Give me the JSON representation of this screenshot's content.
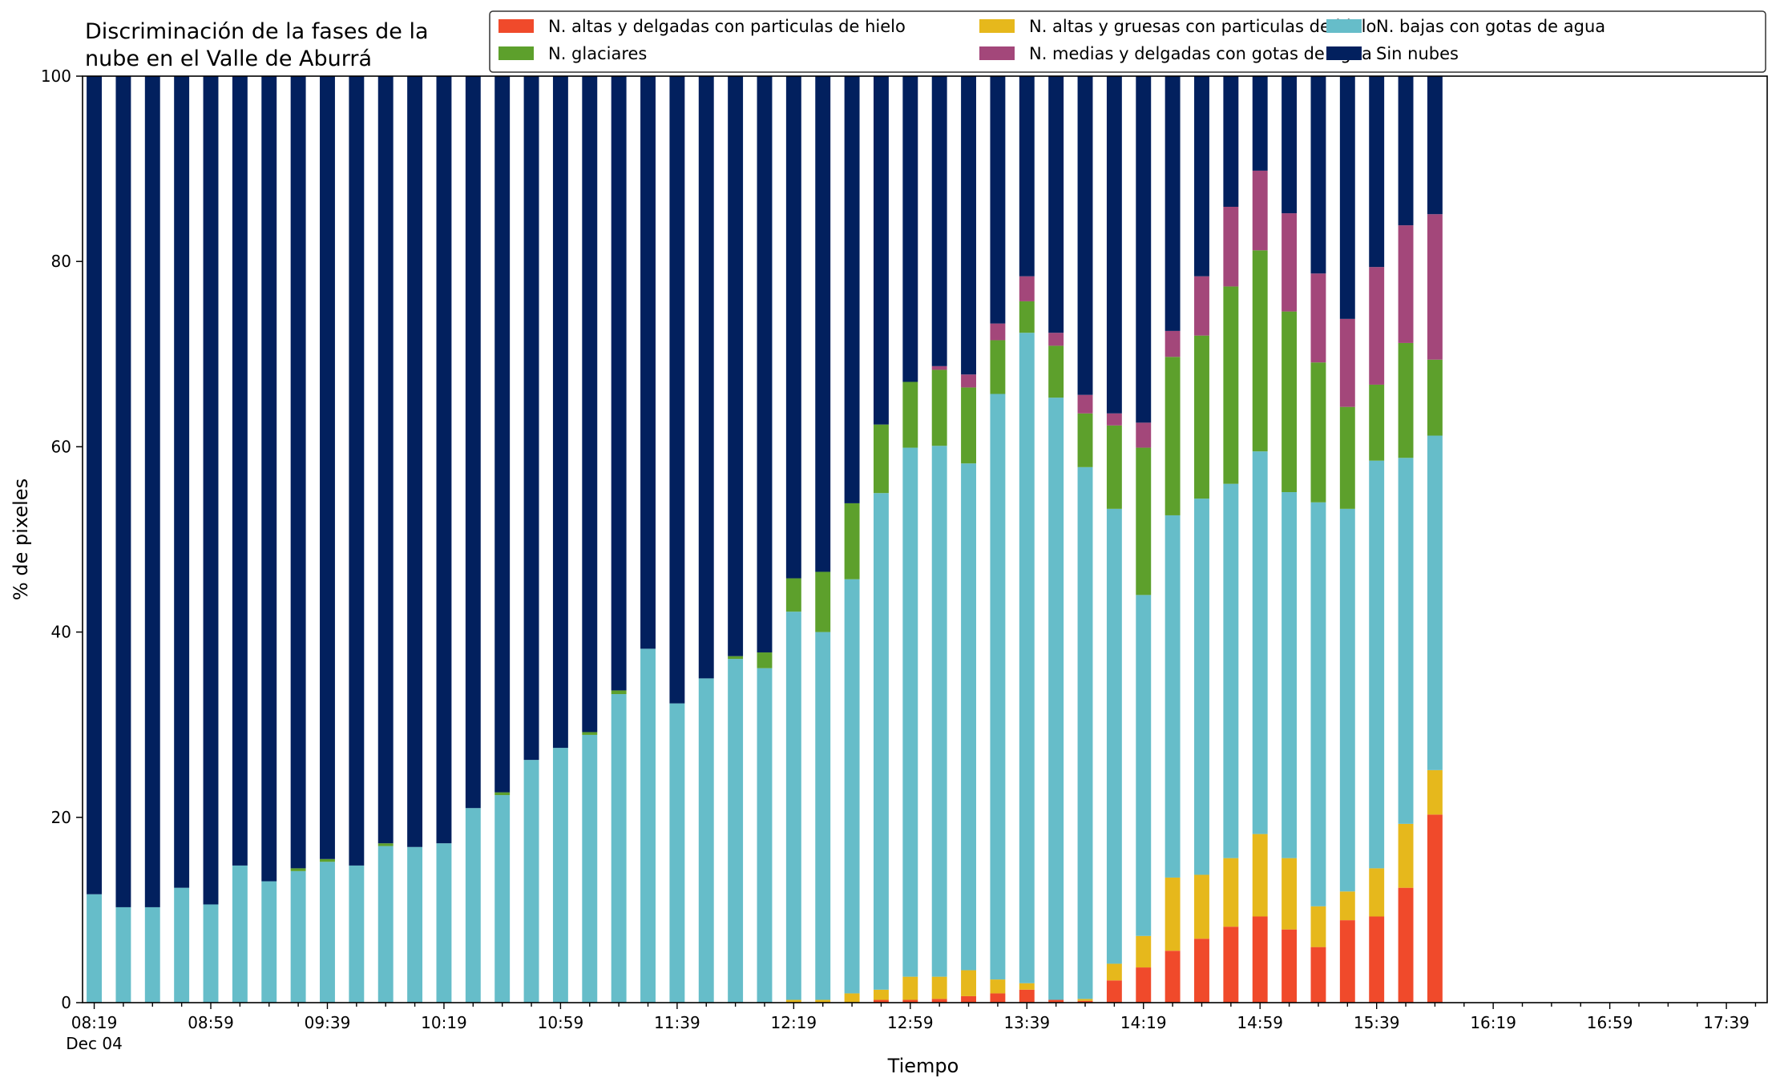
{
  "chart_data": {
    "type": "bar",
    "stacked": true,
    "title": "Discriminación de la fases de la\nnube en el Valle de Aburrá",
    "xlabel": "Tiempo",
    "ylabel": "% de pixeles",
    "ylim": [
      0,
      100
    ],
    "yticks": [
      0,
      20,
      40,
      60,
      80,
      100
    ],
    "xticks": [
      "08:19",
      "08:59",
      "09:39",
      "10:19",
      "10:59",
      "11:39",
      "12:19",
      "12:59",
      "13:39",
      "14:19",
      "14:59",
      "15:39",
      "16:19",
      "16:59",
      "17:39"
    ],
    "x_date_label": "Dec 04",
    "x_range_minutes": [
      "08:19",
      "17:53"
    ],
    "bar_interval_minutes": 10,
    "grid": false,
    "legend_position": "top-right",
    "categories": [
      "08:19",
      "08:29",
      "08:39",
      "08:49",
      "08:59",
      "09:09",
      "09:19",
      "09:29",
      "09:39",
      "09:49",
      "09:59",
      "10:09",
      "10:19",
      "10:29",
      "10:39",
      "10:49",
      "10:59",
      "11:09",
      "11:19",
      "11:29",
      "11:39",
      "11:49",
      "11:59",
      "12:09",
      "12:19",
      "12:29",
      "12:39",
      "12:49",
      "12:59",
      "13:09",
      "13:19",
      "13:29",
      "13:39",
      "13:49",
      "13:59",
      "14:09",
      "14:19",
      "14:29",
      "14:39",
      "14:49",
      "14:59",
      "15:09",
      "15:19",
      "15:29",
      "15:39",
      "15:49",
      "15:59"
    ],
    "series": [
      {
        "name": "N. altas y delgadas con particulas de hielo",
        "color": "#f04a2b",
        "values": [
          0,
          0,
          0,
          0,
          0,
          0,
          0,
          0,
          0,
          0,
          0,
          0,
          0,
          0,
          0,
          0,
          0,
          0,
          0,
          0,
          0,
          0,
          0,
          0,
          0,
          0,
          0,
          0.3,
          0.3,
          0.4,
          0.7,
          1.0,
          1.4,
          0.3,
          0.2,
          2.4,
          3.8,
          5.6,
          6.9,
          8.2,
          9.3,
          7.9,
          6.0,
          8.9,
          9.3,
          12.4,
          20.3
        ]
      },
      {
        "name": "N. altas y gruesas con particulas de hielo",
        "color": "#e6b81c",
        "values": [
          0,
          0,
          0,
          0,
          0,
          0,
          0,
          0,
          0,
          0,
          0,
          0,
          0,
          0,
          0,
          0,
          0,
          0,
          0,
          0,
          0,
          0,
          0,
          0,
          0.3,
          0.3,
          1.0,
          1.1,
          2.5,
          2.4,
          2.8,
          1.5,
          0.7,
          0,
          0.2,
          1.8,
          3.4,
          7.9,
          6.9,
          7.4,
          8.9,
          7.7,
          4.4,
          3.1,
          5.2,
          6.9,
          4.8
        ]
      },
      {
        "name": "N. bajas con gotas de agua",
        "color": "#66bdc9",
        "values": [
          11.7,
          10.3,
          10.3,
          12.4,
          10.6,
          14.8,
          13.1,
          14.2,
          15.2,
          14.8,
          16.9,
          16.8,
          17.2,
          21.0,
          22.4,
          26.2,
          27.5,
          28.9,
          33.3,
          38.2,
          32.3,
          35.0,
          37.1,
          36.1,
          41.9,
          39.7,
          44.7,
          53.6,
          57.1,
          57.3,
          54.7,
          63.2,
          70.2,
          65.0,
          57.4,
          49.1,
          36.8,
          39.1,
          40.6,
          40.4,
          41.3,
          39.5,
          43.6,
          41.3,
          44.0,
          39.5,
          36.1
        ]
      },
      {
        "name": "N. glaciares",
        "color": "#5da02c",
        "values": [
          0,
          0,
          0,
          0,
          0,
          0,
          0,
          0.3,
          0.3,
          0,
          0.3,
          0,
          0,
          0,
          0.3,
          0,
          0,
          0.3,
          0.4,
          0,
          0,
          0,
          0.3,
          1.7,
          3.6,
          6.5,
          8.2,
          7.4,
          7.1,
          8.2,
          8.2,
          5.8,
          3.4,
          5.6,
          5.8,
          9.0,
          15.9,
          17.1,
          17.6,
          21.3,
          21.7,
          19.5,
          15.1,
          11.0,
          8.2,
          12.4,
          8.2
        ]
      },
      {
        "name": "N. medias y delgadas con gotas de agua",
        "color": "#a3477a",
        "values": [
          0,
          0,
          0,
          0,
          0,
          0,
          0,
          0,
          0,
          0,
          0,
          0,
          0,
          0,
          0,
          0,
          0,
          0,
          0,
          0,
          0,
          0,
          0,
          0,
          0,
          0,
          0,
          0,
          0,
          0.4,
          1.4,
          1.8,
          2.7,
          1.4,
          2.0,
          1.3,
          2.7,
          2.8,
          6.4,
          8.6,
          8.6,
          10.6,
          9.6,
          9.5,
          12.7,
          12.7,
          15.7
        ]
      },
      {
        "name": "Sin nubes",
        "color": "#02205e",
        "values": [
          88.3,
          89.7,
          89.7,
          87.6,
          89.4,
          85.2,
          86.9,
          85.5,
          84.5,
          85.2,
          82.8,
          83.2,
          82.8,
          79.0,
          77.3,
          73.8,
          72.5,
          70.8,
          66.3,
          61.8,
          67.7,
          65.0,
          62.6,
          62.2,
          54.2,
          53.5,
          46.1,
          37.6,
          33.0,
          31.3,
          32.2,
          26.7,
          21.6,
          27.7,
          34.4,
          36.4,
          37.4,
          27.5,
          21.6,
          14.1,
          10.2,
          14.8,
          21.3,
          26.2,
          20.6,
          16.1,
          14.9
        ]
      }
    ]
  }
}
